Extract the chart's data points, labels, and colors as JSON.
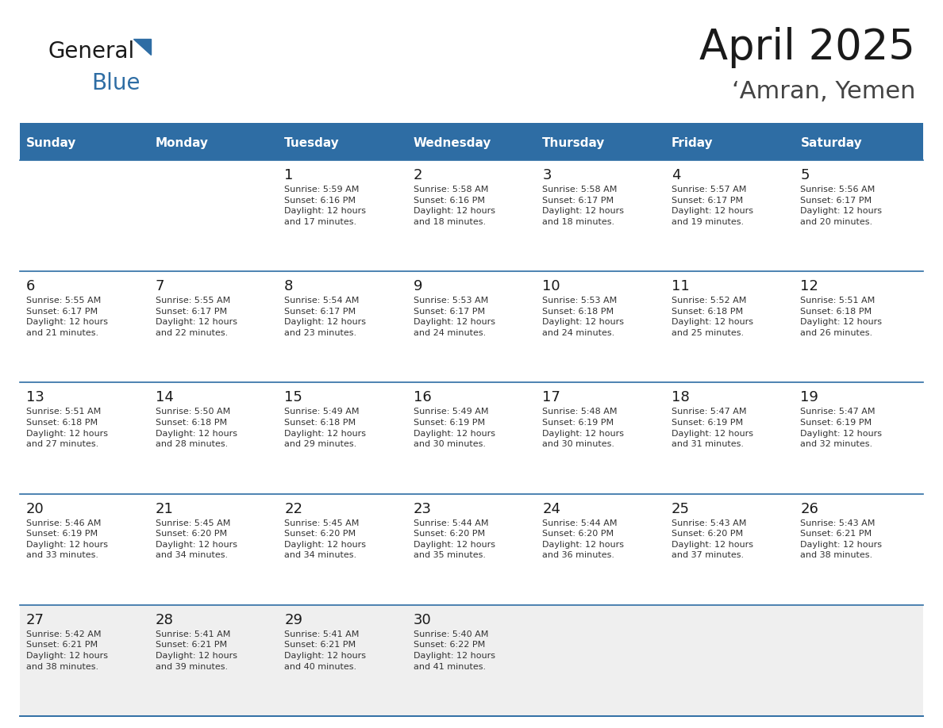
{
  "title": "April 2025",
  "subtitle": "‘Amran, Yemen",
  "header_bg": "#2E6DA4",
  "header_text_color": "#FFFFFF",
  "cell_bg_white": "#FFFFFF",
  "cell_bg_grey": "#F0F0F0",
  "border_color": "#2E6DA4",
  "text_dark": "#1a1a1a",
  "text_info": "#333333",
  "day_names": [
    "Sunday",
    "Monday",
    "Tuesday",
    "Wednesday",
    "Thursday",
    "Friday",
    "Saturday"
  ],
  "calendar": [
    [
      {
        "day": "",
        "info": ""
      },
      {
        "day": "",
        "info": ""
      },
      {
        "day": "1",
        "info": "Sunrise: 5:59 AM\nSunset: 6:16 PM\nDaylight: 12 hours\nand 17 minutes."
      },
      {
        "day": "2",
        "info": "Sunrise: 5:58 AM\nSunset: 6:16 PM\nDaylight: 12 hours\nand 18 minutes."
      },
      {
        "day": "3",
        "info": "Sunrise: 5:58 AM\nSunset: 6:17 PM\nDaylight: 12 hours\nand 18 minutes."
      },
      {
        "day": "4",
        "info": "Sunrise: 5:57 AM\nSunset: 6:17 PM\nDaylight: 12 hours\nand 19 minutes."
      },
      {
        "day": "5",
        "info": "Sunrise: 5:56 AM\nSunset: 6:17 PM\nDaylight: 12 hours\nand 20 minutes."
      }
    ],
    [
      {
        "day": "6",
        "info": "Sunrise: 5:55 AM\nSunset: 6:17 PM\nDaylight: 12 hours\nand 21 minutes."
      },
      {
        "day": "7",
        "info": "Sunrise: 5:55 AM\nSunset: 6:17 PM\nDaylight: 12 hours\nand 22 minutes."
      },
      {
        "day": "8",
        "info": "Sunrise: 5:54 AM\nSunset: 6:17 PM\nDaylight: 12 hours\nand 23 minutes."
      },
      {
        "day": "9",
        "info": "Sunrise: 5:53 AM\nSunset: 6:17 PM\nDaylight: 12 hours\nand 24 minutes."
      },
      {
        "day": "10",
        "info": "Sunrise: 5:53 AM\nSunset: 6:18 PM\nDaylight: 12 hours\nand 24 minutes."
      },
      {
        "day": "11",
        "info": "Sunrise: 5:52 AM\nSunset: 6:18 PM\nDaylight: 12 hours\nand 25 minutes."
      },
      {
        "day": "12",
        "info": "Sunrise: 5:51 AM\nSunset: 6:18 PM\nDaylight: 12 hours\nand 26 minutes."
      }
    ],
    [
      {
        "day": "13",
        "info": "Sunrise: 5:51 AM\nSunset: 6:18 PM\nDaylight: 12 hours\nand 27 minutes."
      },
      {
        "day": "14",
        "info": "Sunrise: 5:50 AM\nSunset: 6:18 PM\nDaylight: 12 hours\nand 28 minutes."
      },
      {
        "day": "15",
        "info": "Sunrise: 5:49 AM\nSunset: 6:18 PM\nDaylight: 12 hours\nand 29 minutes."
      },
      {
        "day": "16",
        "info": "Sunrise: 5:49 AM\nSunset: 6:19 PM\nDaylight: 12 hours\nand 30 minutes."
      },
      {
        "day": "17",
        "info": "Sunrise: 5:48 AM\nSunset: 6:19 PM\nDaylight: 12 hours\nand 30 minutes."
      },
      {
        "day": "18",
        "info": "Sunrise: 5:47 AM\nSunset: 6:19 PM\nDaylight: 12 hours\nand 31 minutes."
      },
      {
        "day": "19",
        "info": "Sunrise: 5:47 AM\nSunset: 6:19 PM\nDaylight: 12 hours\nand 32 minutes."
      }
    ],
    [
      {
        "day": "20",
        "info": "Sunrise: 5:46 AM\nSunset: 6:19 PM\nDaylight: 12 hours\nand 33 minutes."
      },
      {
        "day": "21",
        "info": "Sunrise: 5:45 AM\nSunset: 6:20 PM\nDaylight: 12 hours\nand 34 minutes."
      },
      {
        "day": "22",
        "info": "Sunrise: 5:45 AM\nSunset: 6:20 PM\nDaylight: 12 hours\nand 34 minutes."
      },
      {
        "day": "23",
        "info": "Sunrise: 5:44 AM\nSunset: 6:20 PM\nDaylight: 12 hours\nand 35 minutes."
      },
      {
        "day": "24",
        "info": "Sunrise: 5:44 AM\nSunset: 6:20 PM\nDaylight: 12 hours\nand 36 minutes."
      },
      {
        "day": "25",
        "info": "Sunrise: 5:43 AM\nSunset: 6:20 PM\nDaylight: 12 hours\nand 37 minutes."
      },
      {
        "day": "26",
        "info": "Sunrise: 5:43 AM\nSunset: 6:21 PM\nDaylight: 12 hours\nand 38 minutes."
      }
    ],
    [
      {
        "day": "27",
        "info": "Sunrise: 5:42 AM\nSunset: 6:21 PM\nDaylight: 12 hours\nand 38 minutes."
      },
      {
        "day": "28",
        "info": "Sunrise: 5:41 AM\nSunset: 6:21 PM\nDaylight: 12 hours\nand 39 minutes."
      },
      {
        "day": "29",
        "info": "Sunrise: 5:41 AM\nSunset: 6:21 PM\nDaylight: 12 hours\nand 40 minutes."
      },
      {
        "day": "30",
        "info": "Sunrise: 5:40 AM\nSunset: 6:22 PM\nDaylight: 12 hours\nand 41 minutes."
      },
      {
        "day": "",
        "info": ""
      },
      {
        "day": "",
        "info": ""
      },
      {
        "day": "",
        "info": ""
      }
    ]
  ],
  "logo_text1": "General",
  "logo_text2": "Blue",
  "logo_color1": "#1a1a1a",
  "logo_color2": "#2E6DA4",
  "row_colors": [
    "#FFFFFF",
    "#FFFFFF",
    "#FFFFFF",
    "#FFFFFF",
    "#EFEFEF"
  ]
}
